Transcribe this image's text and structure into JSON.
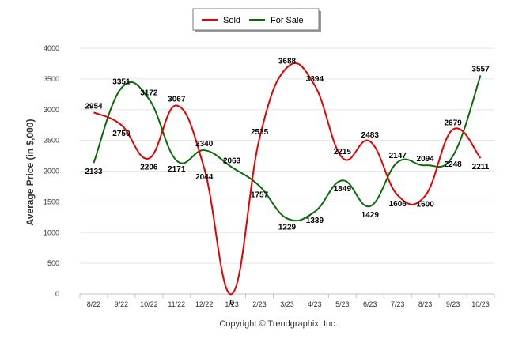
{
  "chart_data": {
    "type": "line",
    "categories": [
      "8/22",
      "9/22",
      "10/22",
      "11/22",
      "12/22",
      "1/23",
      "2/23",
      "3/23",
      "4/23",
      "5/23",
      "6/23",
      "7/23",
      "8/23",
      "9/23",
      "10/23"
    ],
    "series": [
      {
        "name": "Sold",
        "color": "#e60000",
        "values": [
          2954,
          2750,
          2206,
          3067,
          2044,
          0,
          2535,
          3688,
          3394,
          2215,
          2483,
          1606,
          1600,
          2679,
          2211
        ]
      },
      {
        "name": "For Sale",
        "color": "#0a6b0a",
        "values": [
          2133,
          3351,
          3172,
          2171,
          2340,
          2063,
          1757,
          1229,
          1339,
          1849,
          1429,
          2147,
          2094,
          2248,
          3557
        ]
      }
    ],
    "ylabel": "Average Price (in $,000)",
    "xlabel": "",
    "ylim": [
      0,
      4000
    ],
    "yticks": [
      0,
      500,
      1000,
      1500,
      2000,
      2500,
      3000,
      3500,
      4000
    ],
    "grid": true,
    "legend_position": "top-center",
    "credit": "Copyright © Trendgraphix, Inc."
  }
}
